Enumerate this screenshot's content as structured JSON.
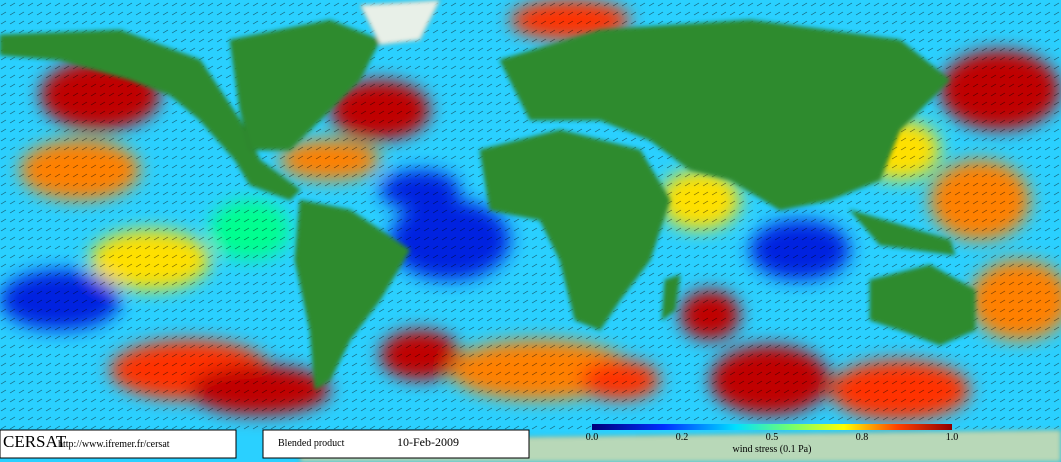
{
  "logo": "CERSAT",
  "url": "http://www.ifremer.fr/cersat",
  "product": "Blended product",
  "date": "10-Feb-2009",
  "colorbar": {
    "labels": [
      "0.0",
      "0.2",
      "0.5",
      "0.8",
      "1.0"
    ],
    "title": "wind stress (0.1 Pa)"
  }
}
